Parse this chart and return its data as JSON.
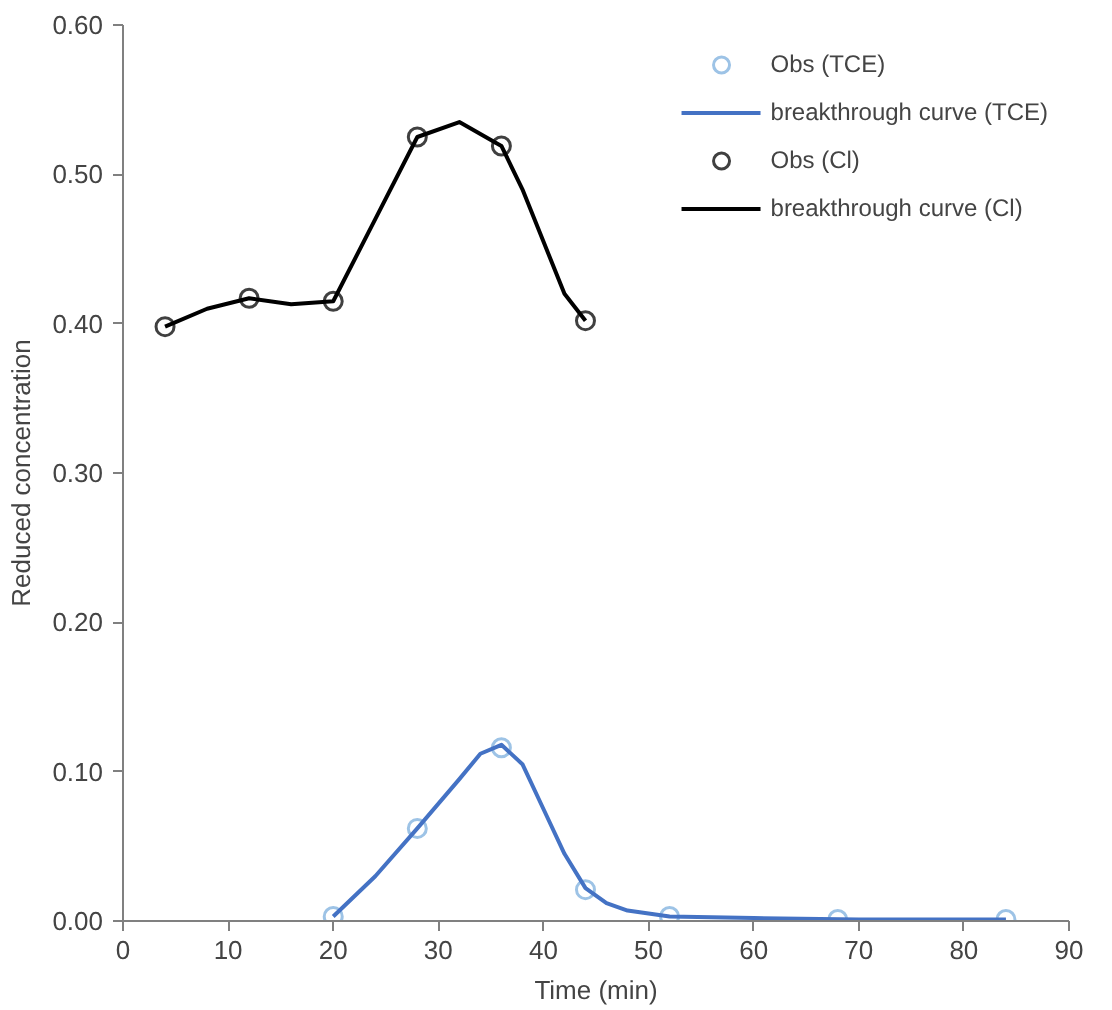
{
  "chart_data": {
    "type": "line",
    "xlabel": "Time (min)",
    "ylabel": "Reduced concentration",
    "xlim": [
      0,
      90
    ],
    "xticks": [
      0,
      10,
      20,
      30,
      40,
      50,
      60,
      70,
      80,
      90
    ],
    "ylim": [
      0,
      0.6
    ],
    "yticks": [
      {
        "value": 0,
        "label": "0.00"
      },
      {
        "value": 0.1,
        "label": "0.10"
      },
      {
        "value": 0.2,
        "label": "0.20"
      },
      {
        "value": 0.3,
        "label": "0.30"
      },
      {
        "value": 0.4,
        "label": "0.40"
      },
      {
        "value": 0.5,
        "label": "0.50"
      },
      {
        "value": 0.6,
        "label": "0.60"
      }
    ],
    "grid": false,
    "legend": "top right",
    "series": [
      {
        "name": "Obs (TCE)",
        "type": "scatter",
        "marker": "circle",
        "color": "#9dc3e6",
        "x": [
          20,
          28,
          36,
          44,
          52,
          68,
          84
        ],
        "values": [
          0.003,
          0.062,
          0.116,
          0.021,
          0.003,
          0.001,
          0.001
        ]
      },
      {
        "name": "breakthrough curve (TCE)",
        "marker": "none",
        "line_style": "solid",
        "color": "#4472c4",
        "x": [
          20,
          24,
          28,
          32,
          34,
          36,
          38,
          40,
          42,
          44,
          46,
          48,
          52,
          60,
          70,
          84
        ],
        "values": [
          0.003,
          0.03,
          0.062,
          0.095,
          0.112,
          0.118,
          0.105,
          0.075,
          0.045,
          0.022,
          0.012,
          0.007,
          0.003,
          0.002,
          0.001,
          0.001
        ]
      },
      {
        "name": "Obs (Cl)",
        "type": "scatter",
        "marker": "circle",
        "color": "#404040",
        "x": [
          4,
          12,
          20,
          28,
          36,
          44
        ],
        "values": [
          0.398,
          0.417,
          0.415,
          0.525,
          0.519,
          0.402
        ]
      },
      {
        "name": "breakthrough curve (Cl)",
        "marker": "none",
        "line_style": "solid",
        "color": "#000000",
        "x": [
          4,
          8,
          12,
          16,
          20,
          24,
          28,
          32,
          36,
          38,
          40,
          42,
          44
        ],
        "values": [
          0.398,
          0.41,
          0.417,
          0.413,
          0.415,
          0.47,
          0.525,
          0.535,
          0.519,
          0.49,
          0.455,
          0.42,
          0.402
        ]
      }
    ]
  }
}
